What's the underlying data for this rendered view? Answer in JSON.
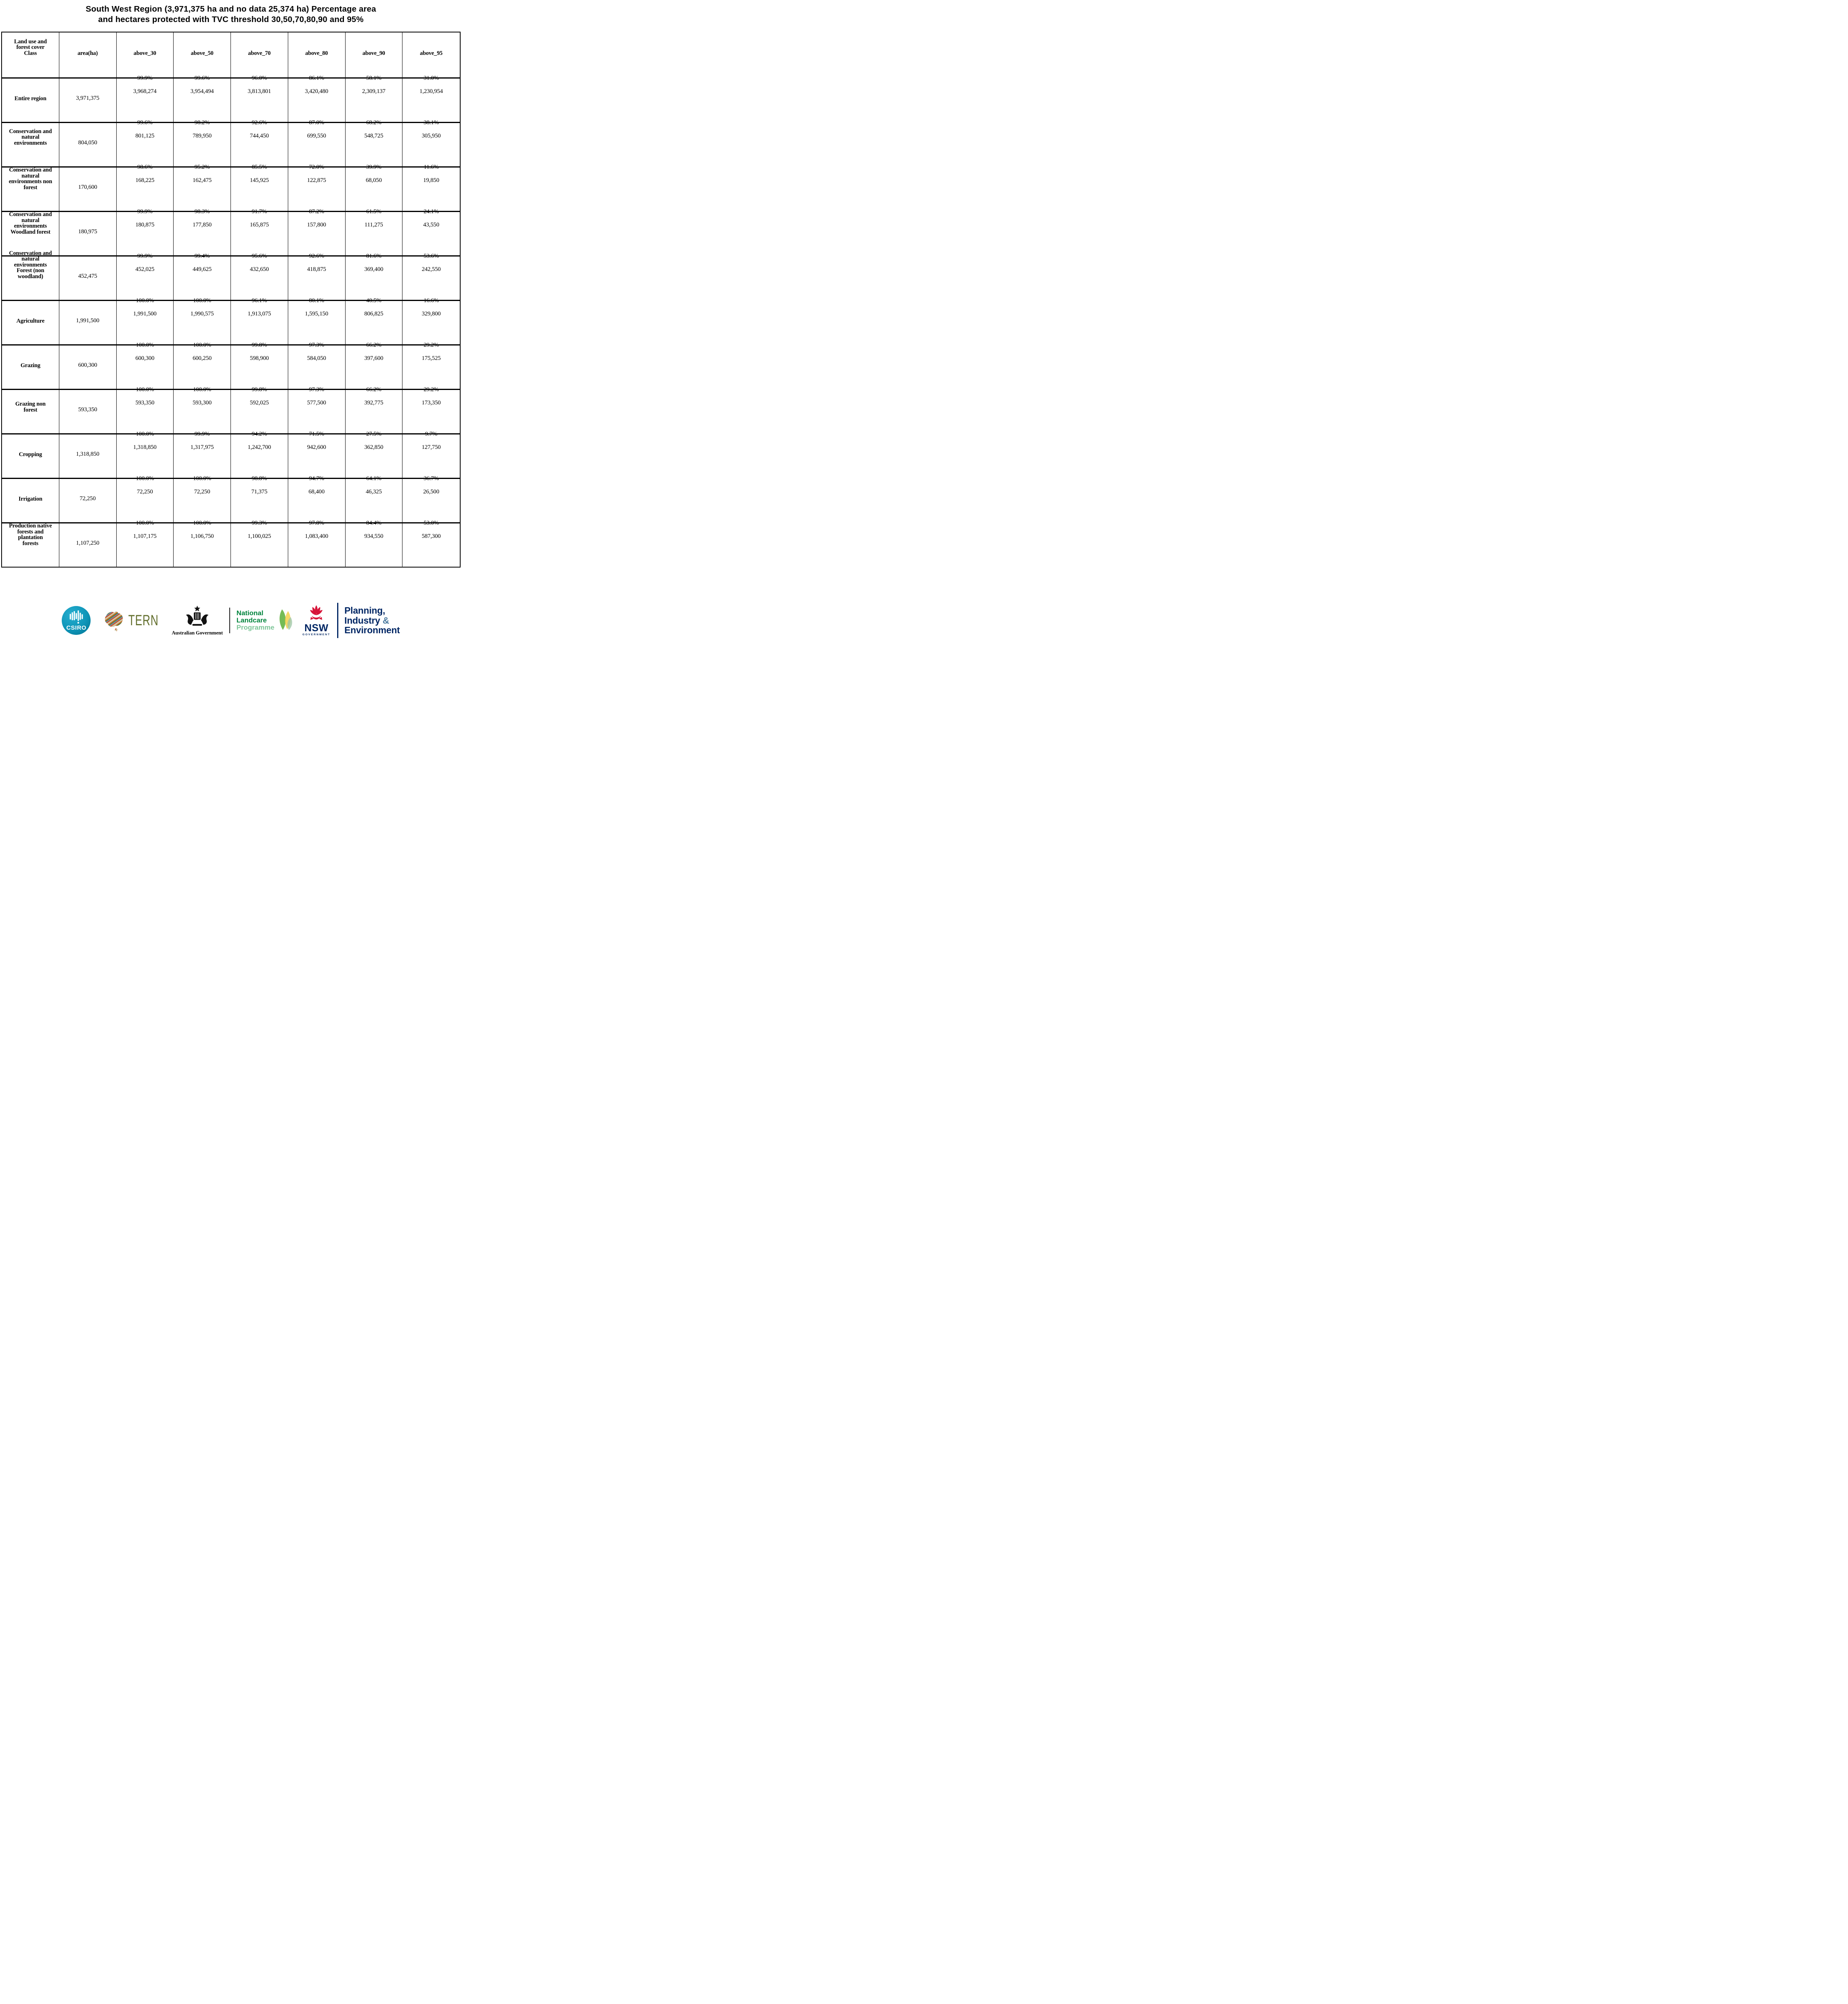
{
  "title": {
    "line1": "South West Region (3,971,375 ha and no data 25,374 ha) Percentage area",
    "line2": "and hectares protected with TVC threshold 30,50,70,80,90 and 95%"
  },
  "table": {
    "columns": [
      "Land use and\nforest cover\nClass",
      "area(ha)",
      "above_30",
      "above_50",
      "above_70",
      "above_80",
      "above_90",
      "above_95"
    ],
    "rows": [
      {
        "label": "Entire region",
        "area": "3,971,375",
        "cells": [
          {
            "pct": "99.9%",
            "ha": "3,968,274"
          },
          {
            "pct": "99.6%",
            "ha": "3,954,494"
          },
          {
            "pct": "96.0%",
            "ha": "3,813,801"
          },
          {
            "pct": "86.1%",
            "ha": "3,420,480"
          },
          {
            "pct": "58.1%",
            "ha": "2,309,137"
          },
          {
            "pct": "31.0%",
            "ha": "1,230,954"
          }
        ]
      },
      {
        "label": "Conservation and\nnatural\nenvironments",
        "area": "804,050",
        "cells": [
          {
            "pct": "99.6%",
            "ha": "801,125"
          },
          {
            "pct": "98.2%",
            "ha": "789,950"
          },
          {
            "pct": "92.6%",
            "ha": "744,450"
          },
          {
            "pct": "87.0%",
            "ha": "699,550"
          },
          {
            "pct": "68.2%",
            "ha": "548,725"
          },
          {
            "pct": "38.1%",
            "ha": "305,950"
          }
        ]
      },
      {
        "label": "Conservation and\nnatural\nenvironments non\nforest",
        "area": "170,600",
        "cells": [
          {
            "pct": "98.6%",
            "ha": "168,225"
          },
          {
            "pct": "95.2%",
            "ha": "162,475"
          },
          {
            "pct": "85.5%",
            "ha": "145,925"
          },
          {
            "pct": "72.0%",
            "ha": "122,875"
          },
          {
            "pct": "39.9%",
            "ha": "68,050"
          },
          {
            "pct": "11.6%",
            "ha": "19,850"
          }
        ]
      },
      {
        "label": "Conservation and\nnatural\nenvironments\nWoodland forest",
        "area": "180,975",
        "cells": [
          {
            "pct": "99.9%",
            "ha": "180,875"
          },
          {
            "pct": "98.3%",
            "ha": "177,850"
          },
          {
            "pct": "91.7%",
            "ha": "165,875"
          },
          {
            "pct": "87.2%",
            "ha": "157,800"
          },
          {
            "pct": "61.5%",
            "ha": "111,275"
          },
          {
            "pct": "24.1%",
            "ha": "43,550"
          }
        ]
      },
      {
        "label": "Conservation and\nnatural\nenvironments\nForest (non\nwoodland)",
        "area": "452,475",
        "cells": [
          {
            "pct": "99.9%",
            "ha": "452,025"
          },
          {
            "pct": "99.4%",
            "ha": "449,625"
          },
          {
            "pct": "95.6%",
            "ha": "432,650"
          },
          {
            "pct": "92.6%",
            "ha": "418,875"
          },
          {
            "pct": "81.6%",
            "ha": "369,400"
          },
          {
            "pct": "53.6%",
            "ha": "242,550"
          }
        ]
      },
      {
        "label": "Agriculture",
        "area": "1,991,500",
        "cells": [
          {
            "pct": "100.0%",
            "ha": "1,991,500"
          },
          {
            "pct": "100.0%",
            "ha": "1,990,575"
          },
          {
            "pct": "96.1%",
            "ha": "1,913,075"
          },
          {
            "pct": "80.1%",
            "ha": "1,595,150"
          },
          {
            "pct": "40.5%",
            "ha": "806,825"
          },
          {
            "pct": "16.6%",
            "ha": "329,800"
          }
        ]
      },
      {
        "label": "Grazing",
        "area": "600,300",
        "cells": [
          {
            "pct": "100.0%",
            "ha": "600,300"
          },
          {
            "pct": "100.0%",
            "ha": "600,250"
          },
          {
            "pct": "99.8%",
            "ha": "598,900"
          },
          {
            "pct": "97.3%",
            "ha": "584,050"
          },
          {
            "pct": "66.2%",
            "ha": "397,600"
          },
          {
            "pct": "29.2%",
            "ha": "175,525"
          }
        ]
      },
      {
        "label": "Grazing non\nforest",
        "area": "593,350",
        "cells": [
          {
            "pct": "100.0%",
            "ha": "593,350"
          },
          {
            "pct": "100.0%",
            "ha": "593,300"
          },
          {
            "pct": "99.8%",
            "ha": "592,025"
          },
          {
            "pct": "97.3%",
            "ha": "577,500"
          },
          {
            "pct": "66.2%",
            "ha": "392,775"
          },
          {
            "pct": "29.2%",
            "ha": "173,350"
          }
        ]
      },
      {
        "label": "Cropping",
        "area": "1,318,850",
        "cells": [
          {
            "pct": "100.0%",
            "ha": "1,318,850"
          },
          {
            "pct": "99.9%",
            "ha": "1,317,975"
          },
          {
            "pct": "94.2%",
            "ha": "1,242,700"
          },
          {
            "pct": "71.5%",
            "ha": "942,600"
          },
          {
            "pct": "27.5%",
            "ha": "362,850"
          },
          {
            "pct": "9.7%",
            "ha": "127,750"
          }
        ]
      },
      {
        "label": "Irrigation",
        "area": "72,250",
        "cells": [
          {
            "pct": "100.0%",
            "ha": "72,250"
          },
          {
            "pct": "100.0%",
            "ha": "72,250"
          },
          {
            "pct": "98.8%",
            "ha": "71,375"
          },
          {
            "pct": "94.7%",
            "ha": "68,400"
          },
          {
            "pct": "64.1%",
            "ha": "46,325"
          },
          {
            "pct": "36.7%",
            "ha": "26,500"
          }
        ]
      },
      {
        "label": "Production native\nforests and\nplantation\nforests",
        "area": "1,107,250",
        "cells": [
          {
            "pct": "100.0%",
            "ha": "1,107,175"
          },
          {
            "pct": "100.0%",
            "ha": "1,106,750"
          },
          {
            "pct": "99.3%",
            "ha": "1,100,025"
          },
          {
            "pct": "97.8%",
            "ha": "1,083,400"
          },
          {
            "pct": "84.4%",
            "ha": "934,550"
          },
          {
            "pct": "53.0%",
            "ha": "587,300"
          }
        ]
      }
    ]
  },
  "footer": {
    "csiro": {
      "label": "CSIRO"
    },
    "tern": {
      "label": "TERN"
    },
    "ausgov": {
      "label": "Australian Government"
    },
    "landcare": {
      "line1": "National",
      "line2": "Landcare",
      "line3": "Programme"
    },
    "nsw": {
      "label": "NSW",
      "sub": "GOVERNMENT"
    },
    "planning": {
      "line1": "Planning,",
      "line2": "Industry",
      "amp": "&",
      "line3": "Environment"
    }
  },
  "colors": {
    "csiro_teal": "#0f95b8",
    "tern_olive": "#636f2e",
    "landcare_green": "#00843d",
    "landcare_light_green": "#7dc598",
    "nsw_red": "#d7153a",
    "navy": "#002664",
    "amp_blue": "#4e7ca1"
  }
}
